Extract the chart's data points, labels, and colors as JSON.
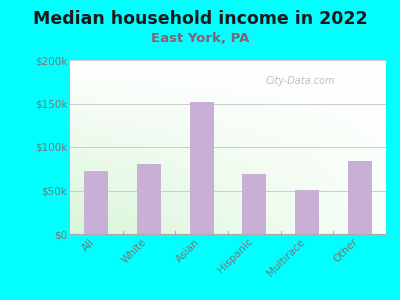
{
  "title": "Median household income in 2022",
  "subtitle": "East York, PA",
  "categories": [
    "All",
    "White",
    "Asian",
    "Hispanic",
    "Multirace",
    "Other"
  ],
  "values": [
    72000,
    80000,
    152000,
    69000,
    51000,
    84000
  ],
  "bar_color": "#c9aed6",
  "background_outer": "#00ffff",
  "title_color": "#1a1a1a",
  "subtitle_color": "#8b5e6e",
  "tick_color": "#777777",
  "watermark": "City-Data.com",
  "ylim": [
    0,
    200000
  ],
  "yticks": [
    0,
    50000,
    100000,
    150000,
    200000
  ],
  "ytick_labels": [
    "$0",
    "$50k",
    "$100k",
    "$150k",
    "$200k"
  ],
  "title_fontsize": 12.5,
  "subtitle_fontsize": 9.5
}
